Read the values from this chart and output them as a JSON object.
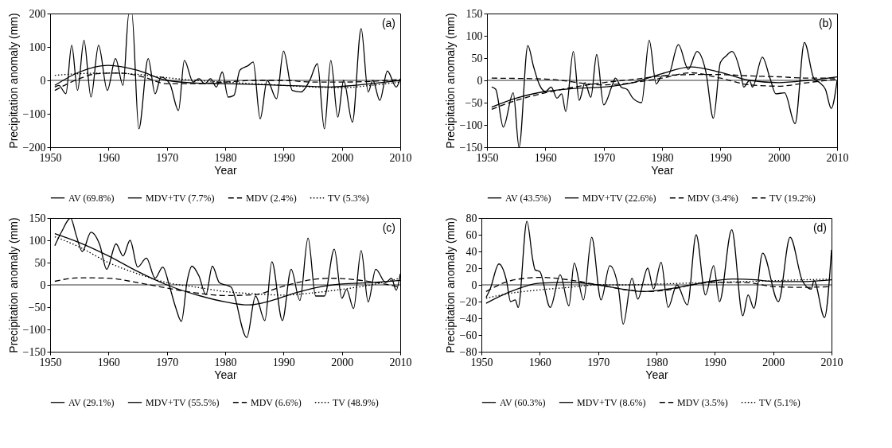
{
  "chart_data": [
    {
      "type": "line",
      "xlabel": "Year",
      "ylabel": "Precipitation anomaly (mm)",
      "annotations": [
        "(a)"
      ],
      "xlim": [
        1950,
        2010
      ],
      "xticks": [
        1950,
        1960,
        1970,
        1980,
        1990,
        2000,
        2010
      ],
      "ylim": [
        -200,
        200
      ],
      "yticks": [
        -200,
        -100,
        0,
        100,
        200
      ],
      "legend": "bottom",
      "ref_lines": [
        {
          "axis": "y",
          "value": 0
        }
      ],
      "series": [
        {
          "name": "AV (69.8%)",
          "color": "#000000",
          "line_style": "solid",
          "x": [
            1950.8,
            1951.5,
            1952.7,
            1953.7,
            1954.7,
            1955.8,
            1957,
            1958.3,
            1959.8,
            1961.2,
            1962.5,
            1963.5,
            1964,
            1965.2,
            1966.8,
            1968,
            1969,
            1970.5,
            1972,
            1973,
            1974.5,
            1975.5,
            1976.5,
            1977.5,
            1978.5,
            1979.5,
            1980.5,
            1981.5,
            1982.5,
            1984,
            1984.8,
            1986,
            1987.2,
            1988.8,
            1990,
            1991.5,
            1993,
            1994.5,
            1995.8,
            1997,
            1998.1,
            1999.3,
            2000.3,
            2001.8,
            2003.3,
            2004.5,
            2005.3,
            2006.5,
            2007.8,
            2009.3,
            2010
          ],
          "values": [
            -20,
            -15,
            -40,
            105,
            -30,
            120,
            -50,
            105,
            -30,
            65,
            -15,
            200,
            200,
            -145,
            65,
            -40,
            10,
            -10,
            -90,
            60,
            -5,
            5,
            -10,
            5,
            -20,
            25,
            -50,
            -45,
            30,
            45,
            55,
            -115,
            0,
            -55,
            88,
            -30,
            -35,
            0,
            50,
            -145,
            60,
            -110,
            0,
            -125,
            155,
            -35,
            0,
            -60,
            28,
            -20,
            5
          ]
        },
        {
          "name": "MDV+TV (7.7%)",
          "color": "#000000",
          "line_style": "solid",
          "x": [
            1950.8,
            1955,
            1960,
            1965,
            1970,
            1975,
            1980,
            1985,
            1990,
            1995,
            1998,
            2002,
            2006,
            2010
          ],
          "values": [
            -15,
            25,
            45,
            30,
            0,
            -8,
            -10,
            -12,
            -15,
            -18,
            -20,
            -15,
            -8,
            0
          ]
        },
        {
          "name": "MDV (2.4%)",
          "color": "#000000",
          "line_style": "dashed",
          "x": [
            1950.8,
            1955,
            1958,
            1962,
            1966,
            1970,
            1975,
            1980,
            1985,
            1990,
            1995,
            2000,
            2005,
            2010
          ],
          "values": [
            -30,
            5,
            20,
            22,
            10,
            -10,
            -10,
            -5,
            0,
            0,
            -5,
            -5,
            -3,
            3
          ]
        },
        {
          "name": "TV (5.3%)",
          "color": "#000000",
          "line_style": "dotted",
          "x": [
            1950.8,
            1955,
            1960,
            1965,
            1970,
            1975,
            1980,
            1985,
            1990,
            1995,
            2000,
            2005,
            2010
          ],
          "values": [
            15,
            20,
            22,
            18,
            8,
            0,
            -5,
            -10,
            -15,
            -20,
            -22,
            -15,
            -5
          ]
        }
      ]
    },
    {
      "type": "line",
      "xlabel": "Year",
      "ylabel": "Precipitation anomaly (mm)",
      "annotations": [
        "(b)"
      ],
      "xlim": [
        1950,
        2010
      ],
      "xticks": [
        1950,
        1960,
        1970,
        1980,
        1990,
        2000,
        2010
      ],
      "ylim": [
        -150,
        150
      ],
      "yticks": [
        -150,
        -100,
        -50,
        0,
        50,
        100,
        150
      ],
      "legend": "bottom",
      "ref_lines": [
        {
          "axis": "y",
          "value": 0
        }
      ],
      "series": [
        {
          "name": "AV (43.5%)",
          "color": "#000000",
          "line_style": "solid",
          "x": [
            1950.8,
            1951.5,
            1952.8,
            1954.5,
            1955.5,
            1957,
            1958,
            1959,
            1960,
            1961,
            1962,
            1962.8,
            1963.5,
            1964.8,
            1965.8,
            1966.8,
            1967.8,
            1968.8,
            1970,
            1971.5,
            1972,
            1973,
            1974,
            1975,
            1976.5,
            1977.8,
            1979,
            1980,
            1981,
            1982.8,
            1984.5,
            1986,
            1987.5,
            1988.8,
            1990,
            1991,
            1992,
            1993.5,
            1994,
            1995,
            1995.5,
            1997.2,
            1998.5,
            1999.5,
            2001,
            2002.8,
            2004.4,
            2006,
            2007,
            2008,
            2009,
            2010
          ],
          "values": [
            -15,
            -20,
            -105,
            -28,
            -150,
            78,
            30,
            -10,
            -25,
            -15,
            -40,
            -30,
            -70,
            65,
            -45,
            -5,
            -38,
            58,
            -55,
            -10,
            5,
            -15,
            -20,
            -40,
            -50,
            90,
            -8,
            10,
            10,
            80,
            25,
            65,
            20,
            -85,
            40,
            55,
            65,
            15,
            -15,
            0,
            -15,
            52,
            5,
            -30,
            -28,
            -97,
            85,
            5,
            -5,
            -20,
            -63,
            0
          ]
        },
        {
          "name": "MDV+TV (22.6%)",
          "color": "#000000",
          "line_style": "solid",
          "x": [
            1950.8,
            1955,
            1960,
            1965,
            1970,
            1975,
            1980,
            1985,
            1990,
            1995,
            2000,
            2005,
            2010
          ],
          "values": [
            -60,
            -40,
            -25,
            -18,
            -15,
            -5,
            15,
            30,
            18,
            0,
            -5,
            0,
            8
          ]
        },
        {
          "name": "MDV (3.4%)",
          "color": "#000000",
          "line_style": "dashed",
          "x": [
            1950.8,
            1955,
            1960,
            1965,
            1970,
            1975,
            1980,
            1985,
            1990,
            1995,
            2000,
            2005,
            2010
          ],
          "values": [
            -65,
            -45,
            -28,
            -15,
            -5,
            2,
            10,
            13,
            13,
            10,
            8,
            5,
            5
          ]
        },
        {
          "name": "TV (19.2%)",
          "color": "#000000",
          "line_style": "dashed",
          "x": [
            1950.8,
            1960,
            1970,
            1980,
            1985,
            1990,
            1995,
            2000,
            2005,
            2010
          ],
          "values": [
            5,
            3,
            -10,
            5,
            17,
            5,
            -10,
            -13,
            -5,
            3
          ]
        }
      ]
    },
    {
      "type": "line",
      "xlabel": "Year",
      "ylabel": "Precipitation anomaly (mm)",
      "annotations": [
        "(c)"
      ],
      "xlim": [
        1950,
        2010
      ],
      "xticks": [
        1950,
        1960,
        1970,
        1980,
        1990,
        2000,
        2010
      ],
      "ylim": [
        -150,
        150
      ],
      "yticks": [
        -150,
        -100,
        -50,
        0,
        50,
        100,
        150
      ],
      "legend": "bottom",
      "ref_lines": [
        {
          "axis": "y",
          "value": 0
        }
      ],
      "series": [
        {
          "name": "AV (29.1%)",
          "color": "#000000",
          "line_style": "solid",
          "x": [
            1950.8,
            1952,
            1953.5,
            1954.5,
            1955.5,
            1957,
            1958.5,
            1959.7,
            1961.3,
            1962.5,
            1963.7,
            1965,
            1966.5,
            1968,
            1969.3,
            1970.5,
            1971.5,
            1972.5,
            1973.5,
            1974.3,
            1975.5,
            1976.7,
            1977.8,
            1979,
            1980,
            1981,
            1983.7,
            1985.2,
            1986.8,
            1988,
            1989.8,
            1991.3,
            1992.8,
            1994.2,
            1995.5,
            1997,
            1998.7,
            2000,
            2000.8,
            2002,
            2003.3,
            2004.5,
            2005.8,
            2007.5,
            2008.5,
            2009.3,
            2010
          ],
          "values": [
            88,
            120,
            150,
            110,
            75,
            118,
            90,
            35,
            92,
            65,
            100,
            40,
            60,
            15,
            40,
            -5,
            -50,
            -82,
            10,
            42,
            20,
            -22,
            42,
            5,
            0,
            -5,
            -118,
            -25,
            -80,
            52,
            -80,
            35,
            -35,
            105,
            -25,
            -25,
            80,
            -30,
            -10,
            -53,
            77,
            -38,
            35,
            5,
            15,
            -12,
            25
          ]
        },
        {
          "name": "MDV+TV (55.5%)",
          "color": "#000000",
          "line_style": "solid",
          "x": [
            1950.8,
            1955,
            1960,
            1965,
            1970,
            1975,
            1980,
            1984,
            1988,
            1992,
            1996,
            2000,
            2005,
            2010
          ],
          "values": [
            115,
            95,
            65,
            30,
            0,
            -22,
            -38,
            -45,
            -35,
            -18,
            -5,
            2,
            5,
            10
          ]
        },
        {
          "name": "MDV (6.6%)",
          "color": "#000000",
          "line_style": "dashed",
          "x": [
            1950.8,
            1955,
            1960,
            1965,
            1970,
            1975,
            1980,
            1985,
            1990,
            1995,
            1998,
            2002,
            2006,
            2010
          ],
          "values": [
            8,
            16,
            15,
            5,
            -7,
            -18,
            -24,
            -22,
            -3,
            12,
            15,
            12,
            5,
            -5
          ]
        },
        {
          "name": "TV (48.9%)",
          "color": "#000000",
          "line_style": "dotted",
          "x": [
            1950.8,
            1955,
            1960,
            1965,
            1970,
            1975,
            1980,
            1985,
            1990,
            1995,
            2000,
            2005,
            2010
          ],
          "values": [
            108,
            85,
            50,
            25,
            5,
            -5,
            -15,
            -20,
            -23,
            -18,
            -10,
            0,
            15
          ]
        }
      ]
    },
    {
      "type": "line",
      "xlabel": "Year",
      "ylabel": "Precipitation anomaly (mm)",
      "annotations": [
        "(d)"
      ],
      "xlim": [
        1950,
        2010
      ],
      "xticks": [
        1950,
        1960,
        1970,
        1980,
        1990,
        2000,
        2010
      ],
      "ylim": [
        -80,
        80
      ],
      "yticks": [
        -80,
        -60,
        -40,
        -20,
        0,
        20,
        40,
        60,
        80
      ],
      "legend": "bottom",
      "ref_lines": [
        {
          "axis": "y",
          "value": 0
        }
      ],
      "series": [
        {
          "name": "AV (60.3%)",
          "color": "#000000",
          "line_style": "solid",
          "x": [
            1950.8,
            1951.5,
            1953,
            1954.3,
            1955,
            1955.8,
            1956.3,
            1957.8,
            1958.8,
            1959.2,
            1960,
            1961.8,
            1963.5,
            1965,
            1965.9,
            1967.5,
            1968.9,
            1970.5,
            1972,
            1973.5,
            1974.3,
            1975.8,
            1976.8,
            1978.5,
            1979.5,
            1980.8,
            1982,
            1983.5,
            1985.3,
            1986.8,
            1988.4,
            1989.8,
            1990.8,
            1992.9,
            1994.8,
            1995.7,
            1996.7,
            1998.2,
            2000.9,
            2002.9,
            2005,
            2006.5,
            2007,
            2008.8,
            2010
          ],
          "values": [
            -15,
            -5,
            25,
            5,
            -20,
            -18,
            -27,
            76,
            30,
            18,
            16,
            -27,
            12,
            -25,
            26,
            -18,
            57,
            -18,
            23,
            -5,
            -47,
            8,
            -17,
            20,
            -5,
            27,
            -27,
            0,
            -24,
            60,
            -12,
            23,
            -20,
            66,
            -37,
            -12,
            -28,
            38,
            -20,
            57,
            5,
            -5,
            5,
            -39,
            42
          ]
        },
        {
          "name": "MDV+TV (8.6%)",
          "color": "#000000",
          "line_style": "solid",
          "x": [
            1950.8,
            1955,
            1960,
            1965,
            1970,
            1975,
            1978,
            1982,
            1986,
            1990,
            1993,
            1997,
            2000,
            2005,
            2010
          ],
          "values": [
            -22,
            -8,
            2,
            3,
            0,
            -6,
            -8,
            -5,
            0,
            5,
            7,
            6,
            4,
            4,
            6
          ]
        },
        {
          "name": "MDV (3.5%)",
          "color": "#000000",
          "line_style": "dashed",
          "x": [
            1950.8,
            1955,
            1960,
            1965,
            1970,
            1975,
            1978,
            1982,
            1986,
            1990,
            1995,
            2000,
            2005,
            2010
          ],
          "values": [
            -8,
            5,
            9,
            6,
            0,
            -6,
            -8,
            -6,
            0,
            3,
            3,
            -2,
            -3,
            -2
          ]
        },
        {
          "name": "TV (5.1%)",
          "color": "#000000",
          "line_style": "dotted",
          "x": [
            1950.8,
            1955,
            1960,
            1965,
            1970,
            1975,
            1980,
            1985,
            1990,
            1995,
            2000,
            2005,
            2010
          ],
          "values": [
            -16,
            -10,
            -6,
            -3,
            0,
            0,
            1,
            2,
            3,
            4,
            5,
            6,
            7
          ]
        }
      ]
    }
  ]
}
